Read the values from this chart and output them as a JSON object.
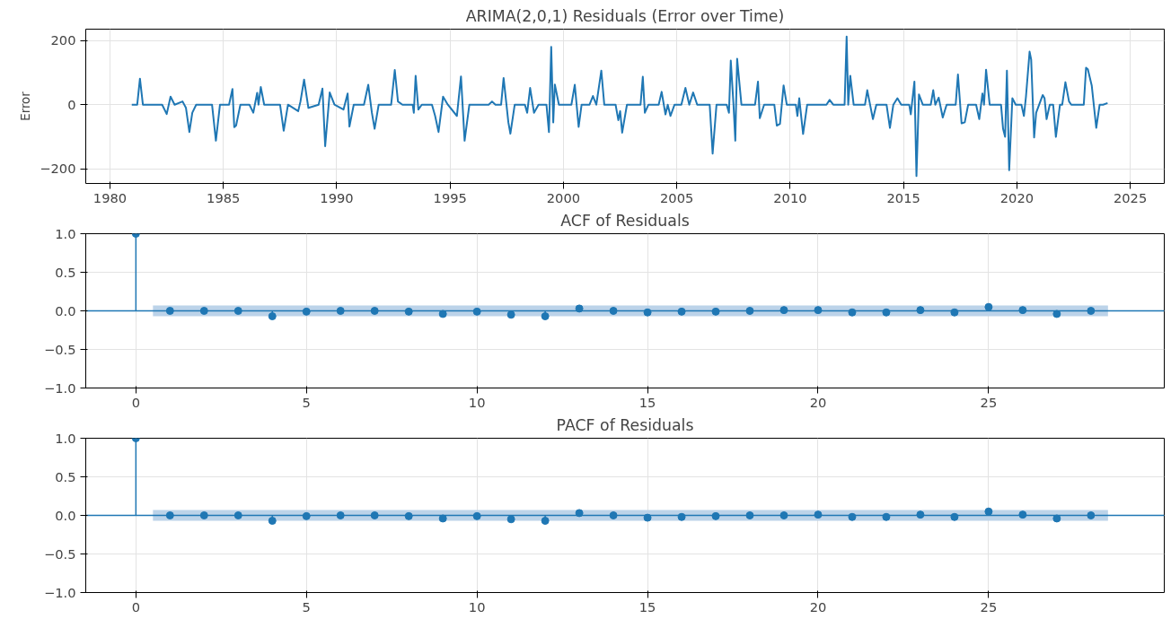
{
  "chart_data": [
    {
      "type": "line",
      "title": "ARIMA(2,0,1) Residuals (Error over Time)",
      "ylabel": "Error",
      "color": "#1f77b4",
      "grid": true,
      "xlim": [
        1978.93,
        2026.5
      ],
      "xticks": [
        1980,
        1985,
        1990,
        1995,
        2000,
        2005,
        2010,
        2015,
        2020,
        2025
      ],
      "ylim": [
        -245,
        235
      ],
      "yticks": [
        {
          "value": -200,
          "label": "−200"
        },
        0,
        200
      ],
      "x": [
        1980.96,
        1981.2,
        1981.32,
        1981.45,
        1982.3,
        1982.5,
        1982.67,
        1982.85,
        1983.2,
        1983.35,
        1983.5,
        1983.63,
        1983.8,
        1984.5,
        1984.67,
        1984.85,
        1985.25,
        1985.4,
        1985.48,
        1985.56,
        1985.75,
        1986.15,
        1986.32,
        1986.49,
        1986.55,
        1986.65,
        1986.8,
        1987.5,
        1987.66,
        1987.85,
        1988.3,
        1988.4,
        1988.56,
        1988.75,
        1989.2,
        1989.37,
        1989.49,
        1989.69,
        1989.9,
        1990.3,
        1990.48,
        1990.56,
        1990.75,
        1991.2,
        1991.39,
        1991.55,
        1991.67,
        1991.85,
        1992.4,
        1992.56,
        1992.7,
        1992.9,
        1993.35,
        1993.4,
        1993.48,
        1993.6,
        1993.75,
        1994.2,
        1994.34,
        1994.49,
        1994.69,
        1994.9,
        1995.3,
        1995.48,
        1995.64,
        1995.85,
        1996.7,
        1996.85,
        1997.0,
        1997.25,
        1997.36,
        1997.57,
        1997.66,
        1997.85,
        1998.3,
        1998.4,
        1998.53,
        1998.7,
        1998.9,
        1999.25,
        1999.36,
        1999.46,
        1999.55,
        1999.62,
        1999.8,
        2000.35,
        2000.5,
        2000.67,
        2000.8,
        2001.15,
        2001.3,
        2001.45,
        2001.67,
        2001.8,
        2002.3,
        2002.42,
        2002.5,
        2002.59,
        2002.8,
        2003.4,
        2003.5,
        2003.59,
        2003.75,
        2004.2,
        2004.33,
        2004.5,
        2004.6,
        2004.72,
        2004.9,
        2005.2,
        2005.38,
        2005.55,
        2005.72,
        2005.9,
        2006.45,
        2006.58,
        2006.75,
        2007.2,
        2007.3,
        2007.38,
        2007.5,
        2007.58,
        2007.66,
        2007.85,
        2008.45,
        2008.58,
        2008.66,
        2008.85,
        2009.3,
        2009.41,
        2009.55,
        2009.71,
        2009.85,
        2010.25,
        2010.32,
        2010.4,
        2010.57,
        2010.75,
        2011.6,
        2011.74,
        2011.9,
        2012.4,
        2012.49,
        2012.56,
        2012.65,
        2012.8,
        2013.3,
        2013.4,
        2013.65,
        2013.8,
        2014.25,
        2014.4,
        2014.55,
        2014.73,
        2014.9,
        2015.25,
        2015.32,
        2015.48,
        2015.57,
        2015.68,
        2015.85,
        2016.2,
        2016.31,
        2016.4,
        2016.55,
        2016.73,
        2016.9,
        2017.3,
        2017.4,
        2017.56,
        2017.7,
        2017.85,
        2018.2,
        2018.34,
        2018.48,
        2018.55,
        2018.64,
        2018.8,
        2019.3,
        2019.39,
        2019.48,
        2019.56,
        2019.66,
        2019.8,
        2019.95,
        2020.2,
        2020.31,
        2020.4,
        2020.56,
        2020.63,
        2020.76,
        2020.85,
        2021.14,
        2021.22,
        2021.31,
        2021.45,
        2021.6,
        2021.72,
        2021.9,
        2022.0,
        2022.14,
        2022.3,
        2022.4,
        2022.95,
        2023.05,
        2023.13,
        2023.3,
        2023.5,
        2023.65,
        2023.8,
        2024.0
      ],
      "values": [
        0,
        0,
        81,
        0,
        0,
        -29,
        25,
        0,
        10,
        -10,
        -85,
        -25,
        0,
        0,
        -112,
        0,
        0,
        49,
        -70,
        -65,
        0,
        0,
        -25,
        37,
        0,
        55,
        0,
        0,
        -81,
        0,
        -20,
        10,
        78,
        -10,
        0,
        50,
        -129,
        38,
        0,
        -15,
        35,
        -68,
        0,
        0,
        62,
        -25,
        -75,
        0,
        0,
        108,
        10,
        0,
        0,
        -25,
        90,
        -15,
        0,
        0,
        -35,
        -85,
        25,
        0,
        -35,
        88,
        -112,
        0,
        0,
        10,
        0,
        0,
        83,
        -55,
        -90,
        0,
        0,
        -25,
        52,
        -25,
        0,
        0,
        -85,
        180,
        -55,
        63,
        0,
        0,
        62,
        -69,
        0,
        0,
        27,
        0,
        106,
        0,
        0,
        -48,
        -20,
        -87,
        0,
        0,
        87,
        -25,
        0,
        0,
        40,
        -30,
        0,
        -35,
        0,
        0,
        52,
        0,
        38,
        0,
        0,
        -152,
        0,
        0,
        -25,
        137,
        0,
        -112,
        143,
        0,
        0,
        72,
        -42,
        0,
        0,
        -65,
        -60,
        60,
        0,
        0,
        -35,
        20,
        -91,
        0,
        0,
        15,
        0,
        0,
        212,
        0,
        90,
        0,
        0,
        45,
        -45,
        0,
        0,
        -72,
        0,
        20,
        0,
        0,
        -30,
        72,
        -222,
        32,
        0,
        0,
        45,
        0,
        22,
        -40,
        0,
        0,
        94,
        -58,
        -55,
        0,
        0,
        -45,
        35,
        0,
        109,
        0,
        0,
        -75,
        -100,
        106,
        -204,
        20,
        0,
        0,
        -35,
        25,
        165,
        140,
        -102,
        -25,
        30,
        20,
        -45,
        0,
        0,
        -100,
        0,
        0,
        70,
        10,
        0,
        0,
        115,
        110,
        60,
        -72,
        0,
        0,
        5
      ]
    },
    {
      "type": "lollipop",
      "title": "ACF of Residuals",
      "color": "#1f77b4",
      "marker": "circle",
      "grid": true,
      "xlim": [
        -1.47,
        30.15
      ],
      "xticks": [
        0,
        5,
        10,
        15,
        20,
        25
      ],
      "ylim": [
        -1,
        1
      ],
      "yticks": [
        {
          "value": -1,
          "label": "−1.0"
        },
        {
          "value": -0.5,
          "label": "−0.5"
        },
        {
          "value": 0,
          "label": "0.0"
        },
        {
          "value": 0.5,
          "label": "0.5"
        },
        {
          "value": 1,
          "label": "1.0"
        }
      ],
      "x": [
        0,
        1,
        2,
        3,
        4,
        5,
        6,
        7,
        8,
        9,
        10,
        11,
        12,
        13,
        14,
        15,
        16,
        17,
        18,
        19,
        20,
        21,
        22,
        23,
        24,
        25,
        26,
        27,
        28
      ],
      "values": [
        1.0,
        0.0,
        0.0,
        0.0,
        -0.07,
        -0.01,
        0.0,
        0.0,
        -0.01,
        -0.04,
        -0.01,
        -0.05,
        -0.07,
        0.03,
        0.0,
        -0.02,
        -0.01,
        -0.01,
        0.0,
        0.01,
        0.01,
        -0.02,
        -0.02,
        0.01,
        -0.02,
        0.05,
        0.01,
        -0.04,
        0.0
      ],
      "ref_lines": [
        {
          "axis": "y",
          "value": 0,
          "color": "#1f77b4"
        }
      ],
      "bands": [
        {
          "axis": "y",
          "from": -0.07,
          "to": 0.07,
          "color": "#bcd3e9"
        }
      ]
    },
    {
      "type": "lollipop",
      "title": "PACF of Residuals",
      "color": "#1f77b4",
      "marker": "circle",
      "grid": true,
      "xlim": [
        -1.47,
        30.15
      ],
      "xticks": [
        0,
        5,
        10,
        15,
        20,
        25
      ],
      "ylim": [
        -1,
        1
      ],
      "yticks": [
        {
          "value": -1,
          "label": "−1.0"
        },
        {
          "value": -0.5,
          "label": "−0.5"
        },
        {
          "value": 0,
          "label": "0.0"
        },
        {
          "value": 0.5,
          "label": "0.5"
        },
        {
          "value": 1,
          "label": "1.0"
        }
      ],
      "x": [
        0,
        1,
        2,
        3,
        4,
        5,
        6,
        7,
        8,
        9,
        10,
        11,
        12,
        13,
        14,
        15,
        16,
        17,
        18,
        19,
        20,
        21,
        22,
        23,
        24,
        25,
        26,
        27,
        28
      ],
      "values": [
        1.0,
        0.0,
        0.0,
        0.0,
        -0.07,
        -0.01,
        0.0,
        0.0,
        -0.01,
        -0.04,
        -0.01,
        -0.05,
        -0.07,
        0.03,
        0.0,
        -0.03,
        -0.02,
        -0.01,
        0.0,
        0.0,
        0.01,
        -0.02,
        -0.02,
        0.01,
        -0.02,
        0.05,
        0.01,
        -0.04,
        0.0
      ],
      "ref_lines": [
        {
          "axis": "y",
          "value": 0,
          "color": "#1f77b4"
        }
      ],
      "bands": [
        {
          "axis": "y",
          "from": -0.07,
          "to": 0.07,
          "color": "#bcd3e9"
        }
      ]
    }
  ]
}
